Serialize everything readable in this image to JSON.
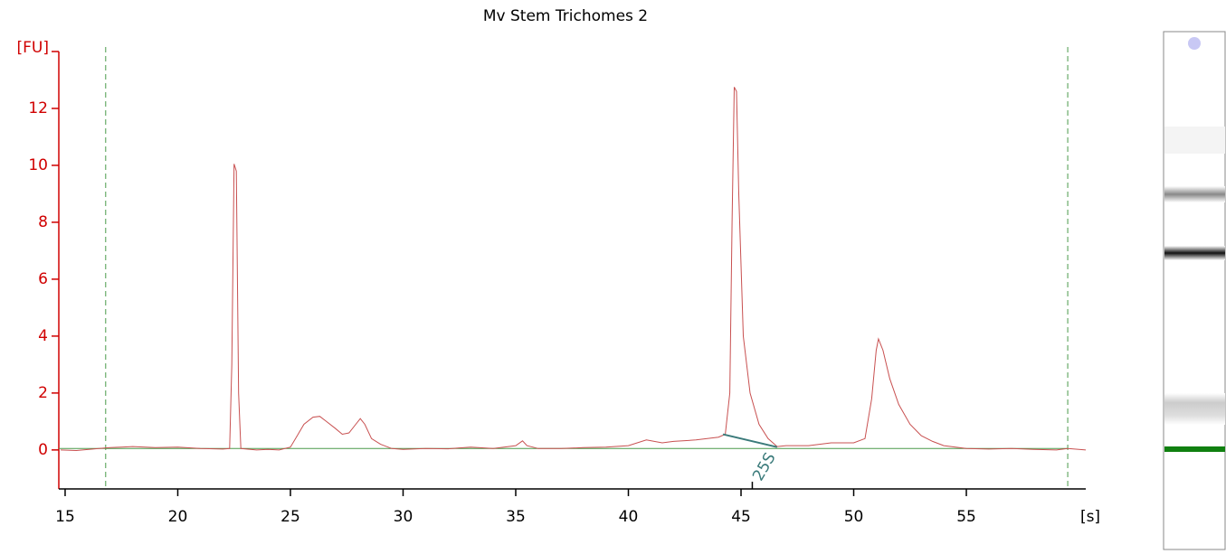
{
  "chart_data": {
    "type": "line",
    "title": "Mv Stem Trichomes 2",
    "ylabel": "[FU]",
    "xlabel": "[s]",
    "xlim": [
      14.72,
      60.3
    ],
    "ylim": [
      -1.37,
      14.0
    ],
    "xticks": [
      15,
      20,
      25,
      30,
      35,
      40,
      45,
      50,
      55
    ],
    "yticks": [
      0,
      2,
      4,
      6,
      8,
      10,
      12
    ],
    "markers": [
      16.8,
      59.5
    ],
    "marker_color": "#4a9a4a",
    "baseline": 0.05,
    "baseline_color": "#4a9a4a",
    "peak_annotation": {
      "label": "25S",
      "start": 44.2,
      "end": 46.6,
      "color": "#3a7a7a"
    },
    "series": [
      {
        "name": "Mv Stem Trichomes 2",
        "color": "#c85050",
        "x": [
          14.8,
          15.5,
          16.5,
          17,
          17.5,
          18,
          19,
          20,
          21,
          22,
          22.3,
          22.4,
          22.5,
          22.6,
          22.7,
          22.8,
          23.5,
          24,
          24.5,
          25,
          25.3,
          25.6,
          26,
          26.3,
          26.6,
          27,
          27.3,
          27.6,
          27.9,
          28.1,
          28.3,
          28.6,
          29,
          29.5,
          30,
          31,
          32,
          33,
          34,
          35,
          35.3,
          35.5,
          36,
          37,
          38,
          39,
          40,
          40.8,
          41.5,
          42,
          43,
          44,
          44.3,
          44.5,
          44.6,
          44.7,
          44.8,
          44.9,
          45.1,
          45.4,
          45.8,
          46.2,
          46.6,
          47,
          48,
          49,
          50,
          50.5,
          50.8,
          51,
          51.1,
          51.3,
          51.6,
          52,
          52.5,
          53,
          53.5,
          54,
          55,
          56,
          57,
          58,
          59,
          59.5,
          60.3
        ],
        "values": [
          0,
          -0.02,
          0.05,
          0.08,
          0.1,
          0.12,
          0.08,
          0.1,
          0.05,
          0.03,
          0.05,
          3,
          10.05,
          9.8,
          2,
          0.05,
          0,
          0.02,
          0,
          0.1,
          0.5,
          0.9,
          1.15,
          1.18,
          1,
          0.75,
          0.55,
          0.6,
          0.9,
          1.1,
          0.9,
          0.4,
          0.2,
          0.05,
          0.02,
          0.05,
          0.04,
          0.1,
          0.05,
          0.15,
          0.32,
          0.15,
          0.05,
          0.05,
          0.08,
          0.1,
          0.15,
          0.35,
          0.25,
          0.3,
          0.35,
          0.45,
          0.55,
          2,
          8,
          12.75,
          12.6,
          9,
          4,
          2,
          0.9,
          0.4,
          0.12,
          0.15,
          0.15,
          0.25,
          0.25,
          0.4,
          1.8,
          3.5,
          3.9,
          3.5,
          2.5,
          1.6,
          0.9,
          0.5,
          0.3,
          0.15,
          0.05,
          0.03,
          0.05,
          0.02,
          0,
          0.05,
          0
        ]
      }
    ]
  }
}
